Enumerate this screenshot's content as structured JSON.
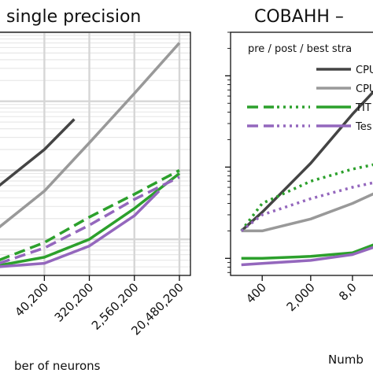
{
  "chart_data": [
    {
      "type": "line",
      "title": "single precision",
      "xlabel": "ber of neurons",
      "ylabel": "",
      "x_scale": "log",
      "y_scale": "log",
      "x_ticks": [
        "40,200",
        "320,200",
        "2,560,200",
        "20,480,200"
      ],
      "x_tick_values": [
        40200,
        320200,
        2560200,
        20480200
      ],
      "xlim": [
        5000,
        20480200
      ],
      "ylim": [
        0.3,
        1000
      ],
      "grid": true,
      "series": [
        {
          "color": "#444444",
          "dash": "solid",
          "x": [
            5000,
            40200,
            160000
          ],
          "y": [
            6,
            20,
            55
          ]
        },
        {
          "color": "#999999",
          "dash": "solid",
          "x": [
            5000,
            40200,
            320200,
            2560200,
            20480200
          ],
          "y": [
            1.5,
            5,
            25,
            130,
            700
          ]
        },
        {
          "color": "#2ca02c",
          "dash": "dashed",
          "x": [
            5000,
            40200,
            320200,
            2560200,
            20480200
          ],
          "y": [
            0.5,
            0.9,
            2.1,
            4.5,
            10
          ]
        },
        {
          "color": "#2ca02c",
          "dash": "solid",
          "x": [
            5000,
            40200,
            320200,
            2560200,
            20480200
          ],
          "y": [
            0.42,
            0.55,
            1.0,
            2.8,
            9
          ]
        },
        {
          "color": "#9467bd",
          "dash": "dashed",
          "x": [
            5000,
            40200,
            320200,
            2560200,
            20480200
          ],
          "y": [
            0.45,
            0.75,
            1.6,
            3.8,
            8
          ]
        },
        {
          "color": "#9467bd",
          "dash": "solid",
          "x": [
            5000,
            40200,
            320200,
            2560200,
            8000000
          ],
          "y": [
            0.4,
            0.45,
            0.8,
            2.2,
            5
          ]
        }
      ]
    },
    {
      "type": "line",
      "title": "COBAHH –",
      "xlabel": "Numb",
      "ylabel": "",
      "x_scale": "log",
      "y_scale": "log",
      "x_ticks": [
        "400",
        "2,000",
        "8,0"
      ],
      "x_tick_values": [
        400,
        2000,
        8000
      ],
      "grid": false,
      "legend": {
        "position": "top-right",
        "title": "pre / post / best stra",
        "entries": [
          "CPU",
          "CPU",
          "TIT",
          "Tes"
        ]
      },
      "series": [
        {
          "name": "CPU",
          "color": "#444444",
          "dash": "solid",
          "x": [
            200,
            400,
            2000,
            8000,
            20000
          ],
          "y": [
            0.2,
            0.32,
            1.1,
            3.8,
            8
          ]
        },
        {
          "name": "CPU",
          "color": "#999999",
          "dash": "solid",
          "x": [
            200,
            400,
            2000,
            8000,
            20000
          ],
          "y": [
            0.2,
            0.2,
            0.27,
            0.4,
            0.55
          ]
        },
        {
          "name": "TIT",
          "color": "#2ca02c",
          "dash": "dotted",
          "x": [
            200,
            400,
            2000,
            8000,
            20000
          ],
          "y": [
            0.2,
            0.4,
            0.7,
            0.95,
            1.1
          ]
        },
        {
          "name": "",
          "color": "#9467bd",
          "dash": "dotted",
          "x": [
            200,
            400,
            2000,
            8000,
            20000
          ],
          "y": [
            0.2,
            0.3,
            0.45,
            0.6,
            0.7
          ]
        },
        {
          "name": "",
          "color": "#2ca02c",
          "dash": "solid",
          "x": [
            200,
            400,
            2000,
            8000,
            20000
          ],
          "y": [
            0.1,
            0.1,
            0.105,
            0.115,
            0.15
          ]
        },
        {
          "name": "Tes",
          "color": "#9467bd",
          "dash": "solid",
          "x": [
            200,
            400,
            2000,
            8000,
            20000
          ],
          "y": [
            0.085,
            0.088,
            0.095,
            0.11,
            0.14
          ]
        }
      ]
    }
  ]
}
